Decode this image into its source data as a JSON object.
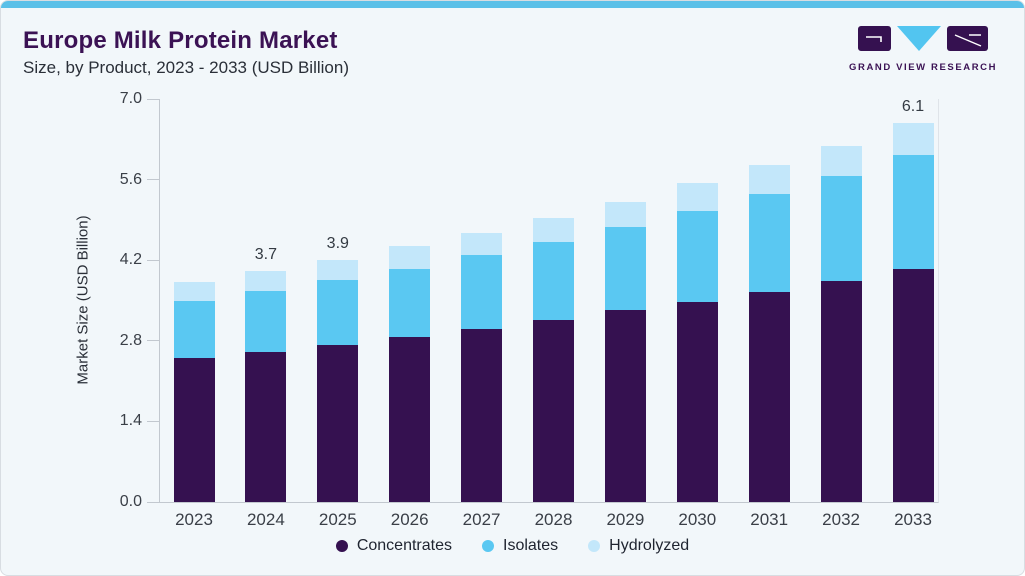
{
  "header": {
    "title": "Europe Milk Protein Market",
    "subtitle": "Size, by Product, 2023 - 2033 (USD Billion)",
    "logo_text": "GRAND VIEW RESEARCH"
  },
  "colors": {
    "accent_bar": "#5bc0e8",
    "title_text": "#3b1254",
    "concentrates": "#351150",
    "isolates": "#5ac8f2",
    "hydrolyzed": "#c3e7fa",
    "axis_line": "#c2c8cf",
    "tick_text": "#3a3f47"
  },
  "chart_data": {
    "type": "bar",
    "stacked": true,
    "title": "Europe Milk Protein Market Size, by Product, 2023 - 2033 (USD Billion)",
    "ylabel": "Market Size (USD Billion)",
    "xlabel": "",
    "ylim": [
      0.0,
      7.0
    ],
    "ytick_labels": [
      "7.0",
      "5.6",
      "4.2",
      "2.8",
      "1.4",
      "0.0"
    ],
    "grid": false,
    "legend_position": "bottom",
    "categories": [
      "2023",
      "2024",
      "2025",
      "2026",
      "2027",
      "2028",
      "2029",
      "2030",
      "2031",
      "2032",
      "2033"
    ],
    "series": [
      {
        "name": "Concentrates",
        "color": "#351150",
        "values": [
          2.32,
          2.42,
          2.53,
          2.65,
          2.79,
          2.93,
          3.09,
          3.22,
          3.38,
          3.56,
          3.76
        ]
      },
      {
        "name": "Isolates",
        "color": "#5ac8f2",
        "values": [
          0.92,
          0.98,
          1.05,
          1.1,
          1.18,
          1.26,
          1.34,
          1.46,
          1.58,
          1.69,
          1.83
        ]
      },
      {
        "name": "Hydrolyzed",
        "color": "#c3e7fa",
        "values": [
          0.3,
          0.32,
          0.32,
          0.37,
          0.37,
          0.39,
          0.4,
          0.45,
          0.47,
          0.49,
          0.51
        ]
      }
    ],
    "totals": [
      3.54,
      3.72,
      3.9,
      4.12,
      4.34,
      4.58,
      4.83,
      5.13,
      5.43,
      5.74,
      6.1
    ],
    "total_labels": {
      "2024": "3.7",
      "2025": "3.9",
      "2033": "6.1"
    }
  }
}
